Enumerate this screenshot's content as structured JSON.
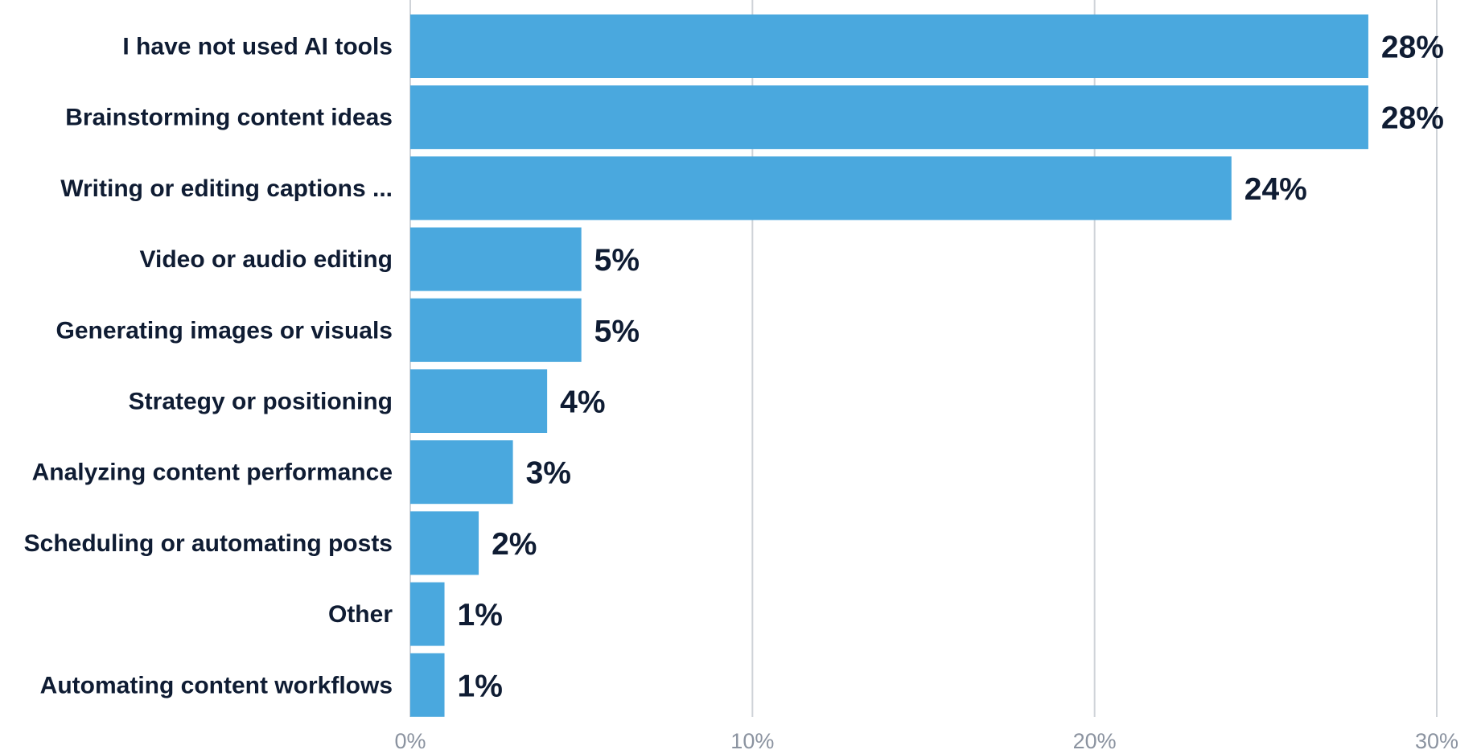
{
  "chart_data": {
    "type": "bar",
    "orientation": "horizontal",
    "categories": [
      "I have not used AI tools",
      "Brainstorming content ideas",
      "Writing or editing captions ...",
      "Video or audio editing",
      "Generating images or visuals",
      "Strategy or positioning",
      "Analyzing content performance",
      "Scheduling or automating posts",
      "Other",
      "Automating content workflows"
    ],
    "values": [
      28,
      28,
      24,
      5,
      5,
      4,
      3,
      2,
      1,
      1
    ],
    "value_labels": [
      "28%",
      "28%",
      "24%",
      "5%",
      "5%",
      "4%",
      "3%",
      "2%",
      "1%",
      "1%"
    ],
    "xlim": [
      0,
      30
    ],
    "xticks": [
      0,
      10,
      20,
      30
    ],
    "xtick_labels": [
      "0%",
      "10%",
      "20%",
      "30%"
    ],
    "grid": true,
    "legend": "none",
    "bar_color": "#4aa8de",
    "title": "",
    "xlabel": "",
    "ylabel": ""
  }
}
